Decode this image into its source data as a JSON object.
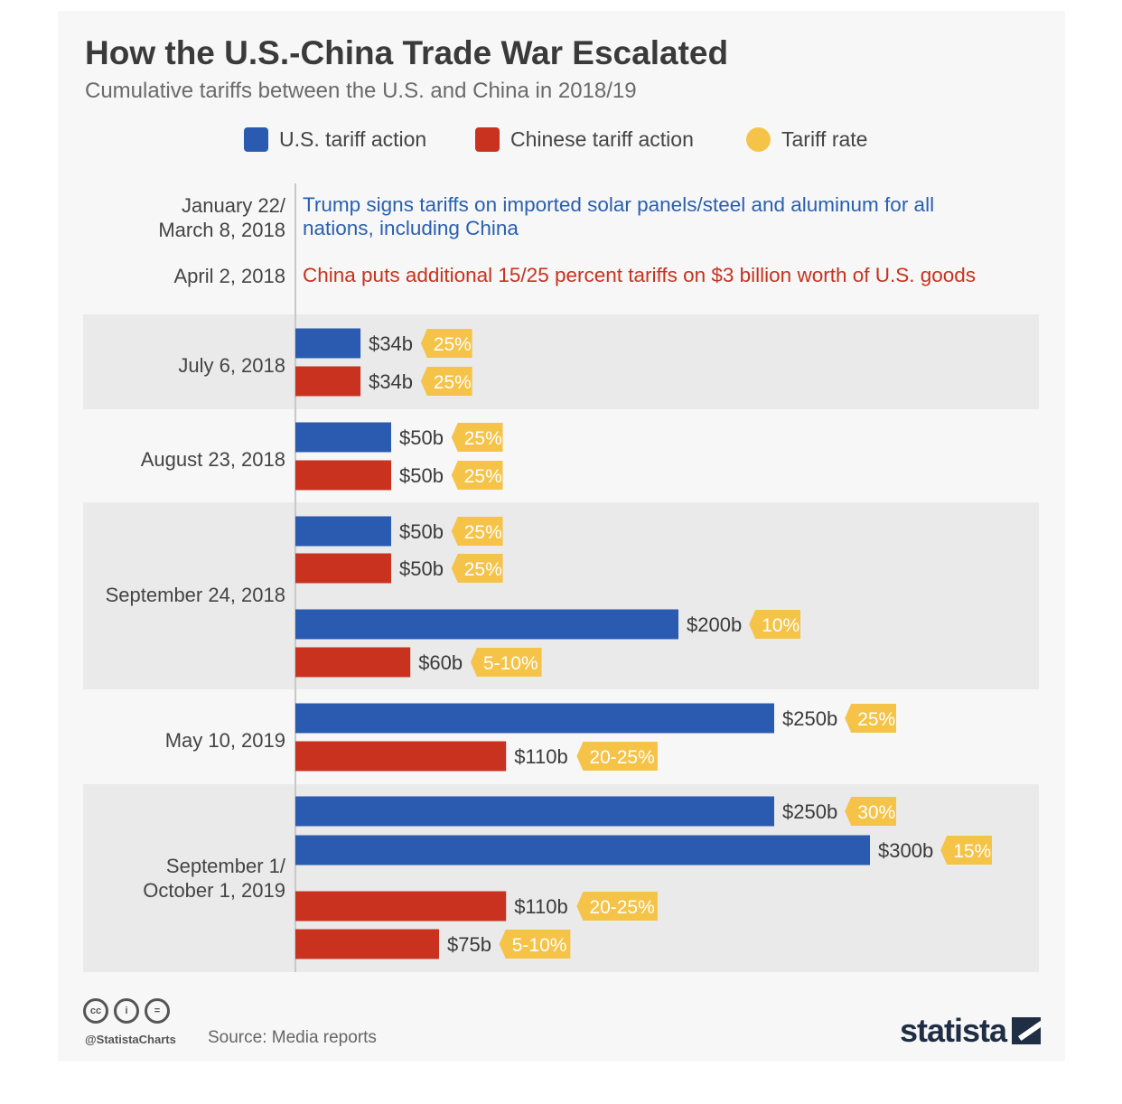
{
  "title": "How the U.S.-China Trade War Escalated",
  "subtitle": "Cumulative tariffs between the U.S. and China in 2018/19",
  "legend": [
    {
      "label": "U.S. tariff action",
      "color": "#2a5bb0",
      "shape": "square"
    },
    {
      "label": "Chinese tariff action",
      "color": "#c8321e",
      "shape": "square"
    },
    {
      "label": "Tariff rate",
      "color": "#f5c347",
      "shape": "circle"
    }
  ],
  "events": [
    {
      "date_lines": [
        "January 22/",
        "March 8, 2018"
      ],
      "text_lines": [
        "Trump signs tariffs on imported solar panels/steel and aluminum for all",
        "nations, including China"
      ],
      "side": "us"
    },
    {
      "date_lines": [
        "April 2, 2018"
      ],
      "text_lines": [
        "China puts additional 15/25 percent tariffs on $3 billion worth of U.S. goods"
      ],
      "side": "cn"
    }
  ],
  "colors": {
    "us": "#2a5bb0",
    "cn": "#c8321e",
    "rate": "#f5c347"
  },
  "chart_data": {
    "type": "bar",
    "orientation": "horizontal",
    "unit": "billion USD",
    "groups": [
      {
        "date_lines": [
          "July 6, 2018"
        ],
        "bars": [
          {
            "side": "us",
            "value": 34,
            "label": "$34b",
            "rate": "25%"
          },
          {
            "side": "cn",
            "value": 34,
            "label": "$34b",
            "rate": "25%"
          }
        ]
      },
      {
        "date_lines": [
          "August 23, 2018"
        ],
        "bars": [
          {
            "side": "us",
            "value": 50,
            "label": "$50b",
            "rate": "25%"
          },
          {
            "side": "cn",
            "value": 50,
            "label": "$50b",
            "rate": "25%"
          }
        ]
      },
      {
        "date_lines": [
          "September 24, 2018"
        ],
        "bars": [
          {
            "side": "us",
            "value": 50,
            "label": "$50b",
            "rate": "25%"
          },
          {
            "side": "cn",
            "value": 50,
            "label": "$50b",
            "rate": "25%"
          },
          {
            "side": "us",
            "value": 200,
            "label": "$200b",
            "rate": "10%"
          },
          {
            "side": "cn",
            "value": 60,
            "label": "$60b",
            "rate": "5-10%"
          }
        ]
      },
      {
        "date_lines": [
          "May 10, 2019"
        ],
        "bars": [
          {
            "side": "us",
            "value": 250,
            "label": "$250b",
            "rate": "25%"
          },
          {
            "side": "cn",
            "value": 110,
            "label": "$110b",
            "rate": "20-25%"
          }
        ]
      },
      {
        "date_lines": [
          "September 1/",
          "October 1, 2019"
        ],
        "bars": [
          {
            "side": "us",
            "value": 250,
            "label": "$250b",
            "rate": "30%"
          },
          {
            "side": "us",
            "value": 300,
            "label": "$300b",
            "rate": "15%"
          },
          {
            "side": "cn",
            "value": 110,
            "label": "$110b",
            "rate": "20-25%"
          },
          {
            "side": "cn",
            "value": 75,
            "label": "$75b",
            "rate": "5-10%"
          }
        ]
      }
    ]
  },
  "footer": {
    "handle": "@StatistaCharts",
    "source": "Source: Media reports",
    "brand": "statista",
    "license_icons": [
      "cc-icon",
      "by-icon",
      "nd-icon"
    ],
    "license_glyphs": [
      "cc",
      "i",
      "="
    ]
  }
}
